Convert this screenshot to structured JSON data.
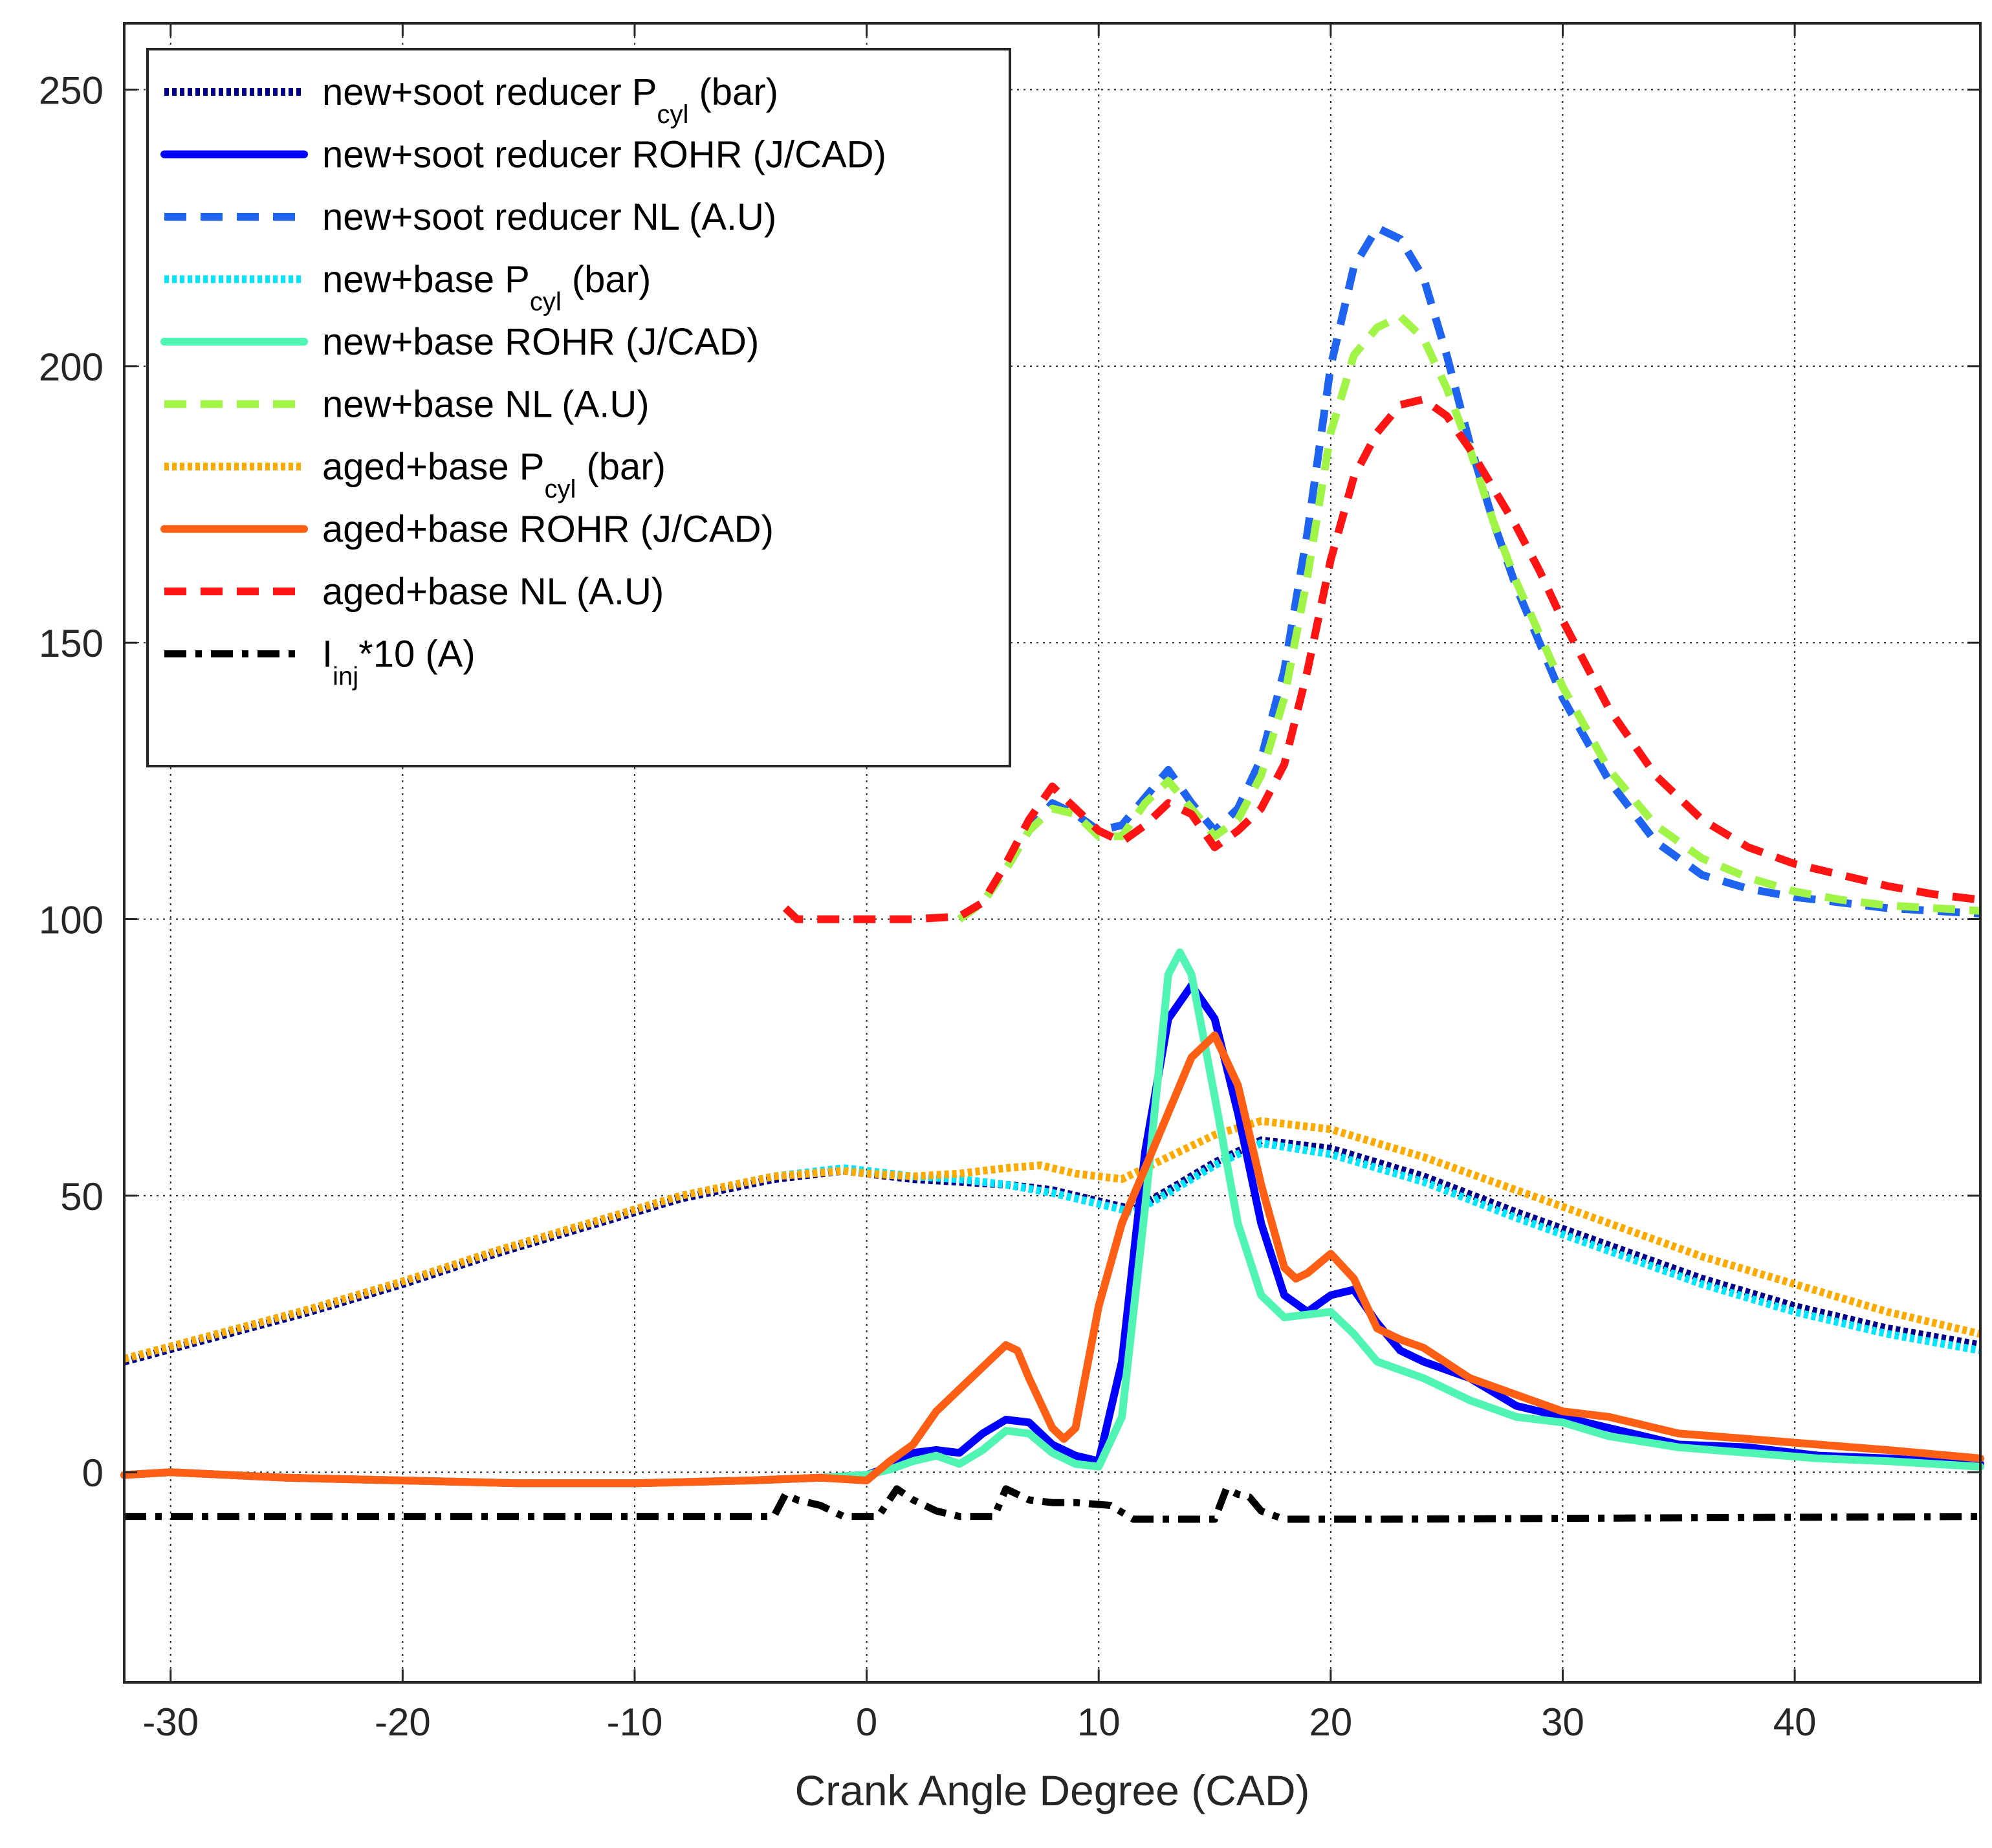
{
  "chart_data": {
    "type": "line",
    "title": "",
    "xlabel": "Crank Angle Degree (CAD)",
    "ylabel": "",
    "xlim": [
      -32,
      48
    ],
    "ylim": [
      -38,
      262
    ],
    "xticks": [
      -30,
      -20,
      -10,
      0,
      10,
      20,
      30,
      40
    ],
    "yticks": [
      0,
      50,
      100,
      150,
      200,
      250
    ],
    "grid": true,
    "legend_position": "top-left",
    "series": [
      {
        "name": "new+soot reducer P",
        "sub": "cyl",
        "unit": " (bar)",
        "color": "#00008B",
        "style": "dotted",
        "x": [
          -32,
          -28,
          -24,
          -20,
          -16,
          -12,
          -8,
          -4,
          -1,
          0,
          2,
          4,
          6,
          8,
          10,
          11.5,
          13,
          15,
          17,
          20,
          24,
          28,
          32,
          36,
          40,
          44,
          48
        ],
        "y": [
          20,
          24.5,
          29,
          34,
          39.5,
          44.5,
          49.5,
          53,
          54.5,
          54,
          53,
          52.5,
          52,
          51,
          49,
          47.5,
          51,
          56,
          60,
          58.5,
          53.5,
          47,
          41,
          35,
          30,
          26,
          23
        ]
      },
      {
        "name": "new+soot reducer ROHR",
        "unit": " (J/CAD)",
        "color": "#0000FF",
        "style": "solid",
        "x": [
          -32,
          -30,
          -25,
          -20,
          -15,
          -10,
          -5,
          -2,
          0,
          1,
          2,
          3,
          4,
          5,
          6,
          7,
          8,
          9,
          10,
          11,
          12,
          13,
          14,
          15,
          16,
          17,
          18,
          19,
          20,
          21,
          22,
          23,
          24,
          26,
          28,
          30,
          32,
          35,
          38,
          41,
          44,
          48
        ],
        "y": [
          -0.5,
          0,
          -1,
          -1.5,
          -2,
          -2,
          -1.5,
          -1,
          -0.5,
          1,
          3.5,
          4,
          3.5,
          7,
          9.5,
          9,
          5,
          3,
          2,
          20,
          58,
          82,
          88,
          82,
          65,
          45,
          32,
          29,
          32,
          33,
          27,
          22,
          20,
          17,
          12,
          10,
          8,
          5,
          4.5,
          3,
          2.5,
          1.5
        ]
      },
      {
        "name": "new+soot reducer NL",
        "unit": " (A.U)",
        "color": "#1E64F0",
        "style": "dashed",
        "x": [
          4,
          5,
          6,
          7,
          8,
          9,
          10,
          11,
          12,
          13,
          14,
          15,
          16,
          17,
          18,
          19,
          20,
          21,
          22,
          23,
          24,
          25,
          26,
          27,
          28,
          30,
          32,
          34,
          36,
          38,
          40,
          42,
          44,
          46,
          48
        ],
        "y": [
          100,
          103,
          109,
          116,
          121,
          119,
          116,
          117,
          122,
          127,
          121,
          116,
          120,
          129,
          145,
          170,
          200,
          218,
          225,
          223,
          216,
          202,
          186,
          172,
          160,
          140,
          125,
          114,
          108,
          105.5,
          104,
          103,
          102,
          101.5,
          101
        ]
      },
      {
        "name": "new+base P",
        "sub": "cyl",
        "unit": " (bar)",
        "color": "#00E6FF",
        "style": "dotted",
        "x": [
          -32,
          -28,
          -24,
          -20,
          -16,
          -12,
          -8,
          -4,
          -1,
          0,
          2,
          4,
          6,
          8,
          10,
          11.5,
          13,
          15,
          17,
          20,
          24,
          28,
          32,
          36,
          40,
          44,
          48
        ],
        "y": [
          20.5,
          25,
          29.5,
          34.5,
          40,
          45,
          50,
          53.5,
          55,
          54.5,
          53.5,
          53,
          52,
          50.5,
          48.5,
          47,
          50.5,
          55.5,
          59.5,
          57.5,
          52.5,
          46,
          40,
          34,
          29,
          25,
          22
        ]
      },
      {
        "name": "new+base ROHR",
        "unit": " (J/CAD)",
        "color": "#50F5B4",
        "style": "solid",
        "x": [
          -32,
          -30,
          -25,
          -20,
          -15,
          -10,
          -5,
          -2,
          0,
          1,
          2,
          3,
          4,
          5,
          6,
          7,
          8,
          9,
          10,
          11,
          12,
          13,
          13.5,
          14,
          15,
          16,
          17,
          18,
          19,
          20,
          21,
          22,
          23,
          24,
          26,
          28,
          30,
          32,
          35,
          38,
          41,
          44,
          48
        ],
        "y": [
          -0.5,
          0,
          -1,
          -1.5,
          -2,
          -2,
          -1.5,
          -1,
          -0.5,
          0.5,
          2,
          3,
          1.5,
          4,
          7.5,
          7,
          3.5,
          1.5,
          1,
          10,
          48,
          90,
          94,
          90,
          68,
          45,
          32,
          28,
          28.5,
          29,
          25,
          20,
          18.5,
          17,
          13,
          10,
          9,
          6.5,
          4.5,
          3.5,
          2.5,
          2,
          1
        ]
      },
      {
        "name": "new+base NL",
        "unit": " (A.U)",
        "color": "#A0F546",
        "style": "dashed",
        "x": [
          4,
          5,
          6,
          7,
          8,
          9,
          10,
          11,
          12,
          13,
          14,
          15,
          16,
          17,
          18,
          19,
          20,
          21,
          22,
          23,
          24,
          25,
          26,
          27,
          28,
          30,
          32,
          34,
          36,
          38,
          40,
          42,
          44,
          46,
          48
        ],
        "y": [
          100,
          103,
          109,
          116,
          120,
          119,
          115,
          115,
          121,
          125,
          120,
          115,
          118,
          126,
          140,
          162,
          188,
          202,
          207,
          209,
          205,
          196,
          185,
          172,
          161,
          142,
          127,
          117,
          111,
          107.5,
          105,
          103.5,
          102.5,
          102,
          101.5
        ]
      },
      {
        "name": "aged+base P",
        "sub": "cyl",
        "unit": " (bar)",
        "color": "#FFAA00",
        "style": "dotted",
        "x": [
          -32,
          -28,
          -24,
          -20,
          -16,
          -12,
          -8,
          -4,
          -1,
          0,
          2,
          4,
          6,
          7.5,
          9,
          11,
          13,
          15,
          17,
          20,
          24,
          28,
          32,
          36,
          40,
          44,
          48
        ],
        "y": [
          20.5,
          25,
          29.5,
          34.5,
          40,
          45,
          50,
          53.5,
          54.5,
          54,
          53.5,
          54,
          55,
          55.5,
          54,
          53,
          57,
          61,
          63.5,
          62,
          57,
          51,
          45,
          39,
          34,
          29,
          25
        ]
      },
      {
        "name": "aged+base ROHR",
        "unit": " (J/CAD)",
        "color": "#FF5F14",
        "style": "solid",
        "x": [
          -32,
          -30,
          -25,
          -20,
          -15,
          -10,
          -5,
          -2,
          0,
          1,
          2,
          3,
          4,
          5,
          6,
          6.5,
          7,
          8,
          8.5,
          9,
          10,
          11,
          12,
          13,
          14,
          15,
          16,
          17,
          18,
          18.5,
          19,
          20,
          21,
          22,
          23,
          24,
          26,
          28,
          30,
          32,
          35,
          38,
          41,
          44,
          48
        ],
        "y": [
          -0.5,
          0,
          -1,
          -1.5,
          -2,
          -2,
          -1.5,
          -1,
          -1.5,
          2,
          5,
          11,
          15,
          19,
          23,
          22,
          17,
          8,
          6,
          8,
          30,
          45,
          55,
          65,
          75,
          79,
          70,
          52,
          37,
          35,
          36,
          39.5,
          35,
          26,
          24,
          22.5,
          17,
          14,
          11,
          10,
          7,
          6,
          5,
          4,
          2.5
        ]
      },
      {
        "name": "aged+base NL",
        "unit": " (A.U)",
        "color": "#FF1414",
        "style": "dashed",
        "x": [
          -3.5,
          -3,
          -2,
          0,
          2,
          4,
          5,
          6,
          7,
          8,
          9,
          10,
          11,
          12,
          13,
          14,
          15,
          16,
          17,
          18,
          19,
          20,
          21,
          22,
          23,
          24,
          25,
          26,
          27,
          28,
          29,
          30,
          32,
          34,
          36,
          38,
          40,
          42,
          44,
          46,
          48
        ],
        "y": [
          102,
          100,
          100,
          100,
          100,
          100.5,
          103,
          110,
          118,
          124,
          120,
          116,
          114,
          117,
          121,
          119,
          113,
          116,
          120,
          128,
          145,
          165,
          180,
          188,
          193,
          194,
          191,
          185,
          178,
          171,
          163,
          154,
          138,
          126,
          118,
          113,
          110,
          108,
          106,
          104.5,
          103.5
        ]
      },
      {
        "name": "I",
        "sub": "inj",
        "unit": "*10 (A)",
        "color": "#000000",
        "style": "dashdot",
        "x": [
          -32,
          -4,
          -3.5,
          -3,
          -2,
          -1,
          0.5,
          1.3,
          2,
          2.5,
          3,
          4,
          5.5,
          6,
          7,
          8,
          9,
          10.5,
          11.5,
          13,
          15,
          15.5,
          16,
          16.5,
          17,
          18,
          22,
          48
        ],
        "y": [
          -8,
          -8,
          -4,
          -5,
          -6,
          -8,
          -8,
          -3,
          -5,
          -6,
          -7,
          -8,
          -8,
          -3,
          -5,
          -5.5,
          -5.5,
          -6,
          -8.5,
          -8.5,
          -8.5,
          -3,
          -4,
          -4.5,
          -7,
          -8.5,
          -8.5,
          -8
        ]
      }
    ]
  }
}
